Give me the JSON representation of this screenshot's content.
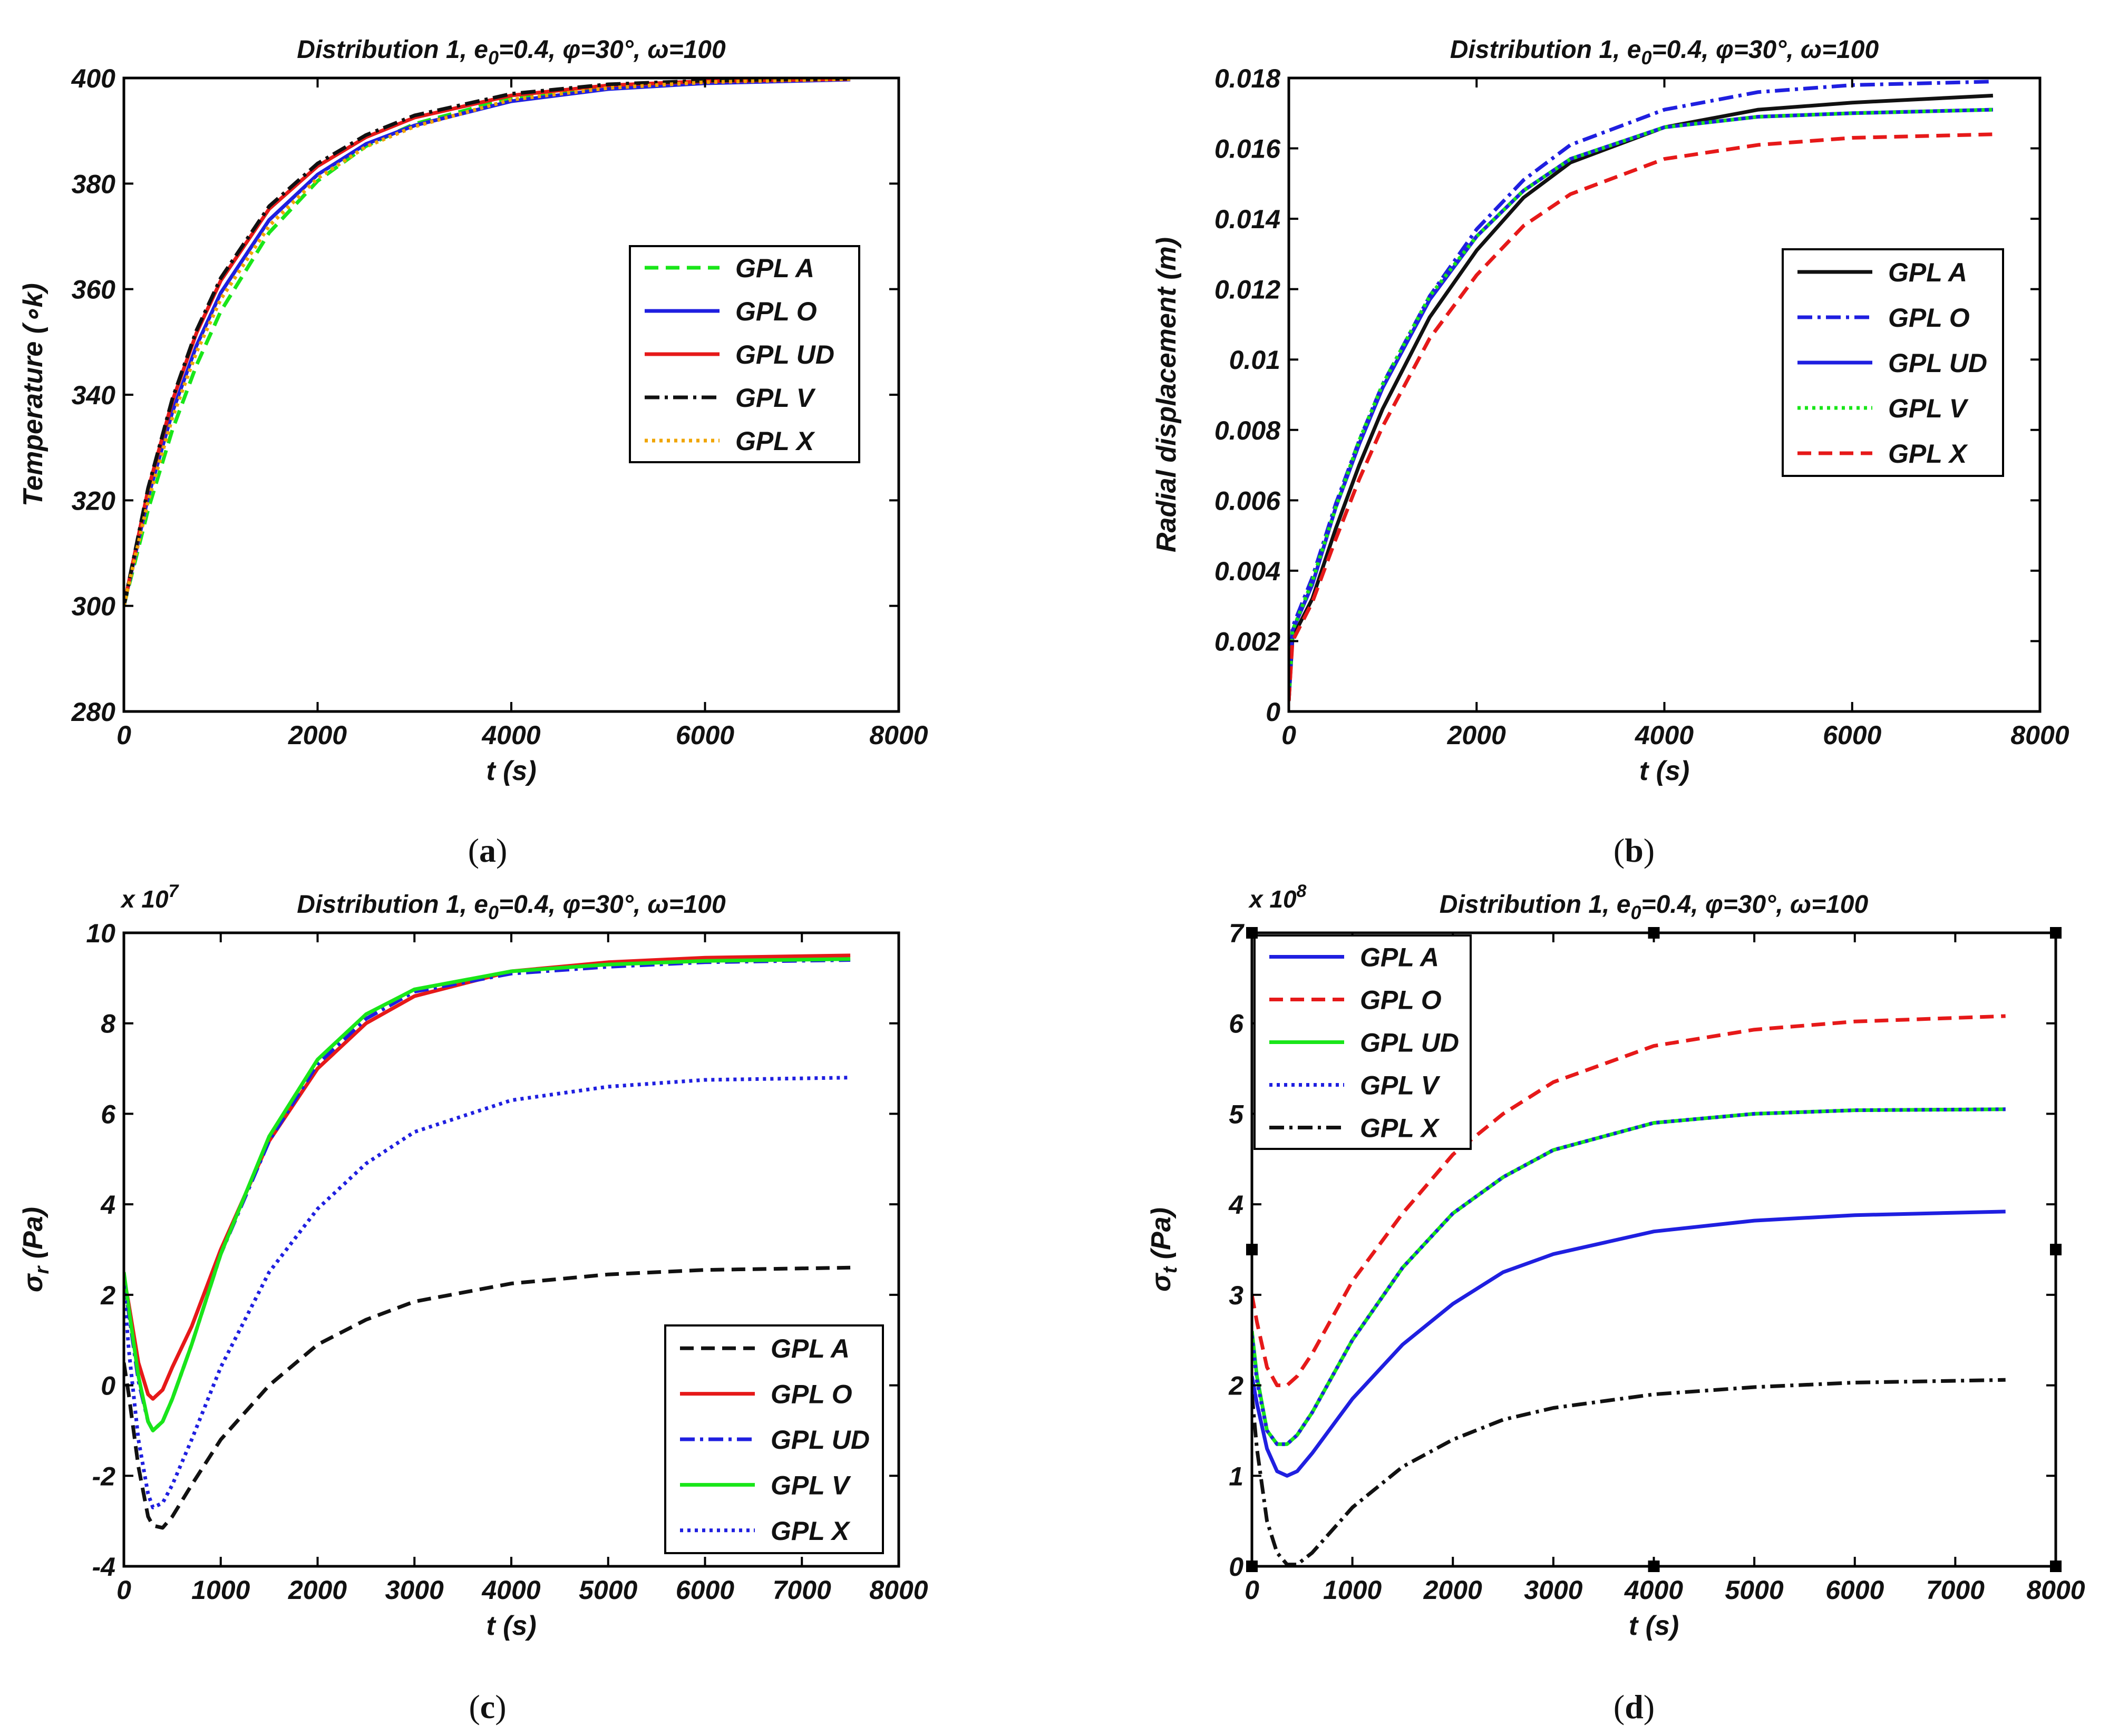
{
  "chart_data": [
    {
      "type": "line",
      "panel": "a",
      "caption": "(a)",
      "title": "Distribution 1, e0=0.4, φ=30°, ω=100",
      "xlabel": "t (s)",
      "ylabel": "Temperature (∘k)",
      "xlim": [
        0,
        8000
      ],
      "ylim": [
        280,
        400
      ],
      "xticks": [
        0,
        2000,
        4000,
        6000,
        8000
      ],
      "yticks": [
        280,
        300,
        320,
        340,
        360,
        380,
        400
      ],
      "xtick_labels": [
        "0",
        "2000",
        "4000",
        "6000",
        "8000"
      ],
      "ytick_labels": [
        "280",
        "300",
        "320",
        "340",
        "360",
        "380",
        "400"
      ],
      "y_multiplier": "",
      "legend": "center-right",
      "x": [
        0,
        250,
        500,
        750,
        1000,
        1500,
        2000,
        2500,
        3000,
        4000,
        5000,
        6000,
        7500
      ],
      "series": [
        {
          "name": "GPL A",
          "color": "#19e619",
          "dash": "dashed",
          "values": [
            300,
            318.2,
            333.3,
            345.6,
            355.8,
            370.7,
            380.5,
            387.1,
            391.3,
            396.2,
            398.4,
            399.3,
            399.8
          ]
        },
        {
          "name": "GPL O",
          "color": "#1f1fe0",
          "dash": "solid",
          "values": [
            300,
            320.6,
            336.7,
            349.3,
            359.3,
            373.1,
            381.7,
            387.5,
            391.0,
            395.6,
            397.9,
            399.0,
            399.7
          ]
        },
        {
          "name": "GPL UD",
          "color": "#e61919",
          "dash": "solid",
          "values": [
            300,
            322.0,
            338.8,
            351.7,
            361.6,
            375.2,
            383.3,
            388.8,
            392.5,
            396.7,
            398.6,
            399.4,
            399.8
          ]
        },
        {
          "name": "GPL V",
          "color": "#111111",
          "dash": "dashdot",
          "values": [
            300,
            322.3,
            339.2,
            352.2,
            362.1,
            375.7,
            383.8,
            389.2,
            392.9,
            397.0,
            398.8,
            399.5,
            399.9
          ]
        },
        {
          "name": "GPL X",
          "color": "#f0a500",
          "dash": "dotted",
          "values": [
            300,
            319.8,
            335.6,
            348.1,
            358.1,
            372.0,
            381.0,
            387.0,
            390.8,
            395.9,
            398.1,
            399.2,
            399.8
          ]
        }
      ]
    },
    {
      "type": "line",
      "panel": "b",
      "caption": "(b)",
      "title": "Distribution 1, e0=0.4, φ=30°, ω=100",
      "xlabel": "t (s)",
      "ylabel": "Radial displacement (m)",
      "xlim": [
        0,
        8000
      ],
      "ylim": [
        0,
        0.018
      ],
      "xticks": [
        0,
        2000,
        4000,
        6000,
        8000
      ],
      "yticks": [
        0,
        0.002,
        0.004,
        0.006,
        0.008,
        0.01,
        0.012,
        0.014,
        0.016,
        0.018
      ],
      "xtick_labels": [
        "0",
        "2000",
        "4000",
        "6000",
        "8000"
      ],
      "ytick_labels": [
        "0",
        "0.002",
        "0.004",
        "0.006",
        "0.008",
        "0.01",
        "0.012",
        "0.014",
        "0.016",
        "0.018"
      ],
      "y_multiplier": "",
      "legend": "center-right",
      "x": [
        0,
        40,
        250,
        500,
        750,
        1000,
        1500,
        2000,
        2500,
        3000,
        4000,
        5000,
        6000,
        7500
      ],
      "series": [
        {
          "name": "GPL A",
          "color": "#111111",
          "dash": "solid",
          "values": [
            0.0003,
            0.0021,
            0.0032,
            0.0052,
            0.007,
            0.0086,
            0.0112,
            0.0131,
            0.0146,
            0.0156,
            0.0166,
            0.0171,
            0.0173,
            0.0175
          ]
        },
        {
          "name": "GPL O",
          "color": "#1f1fe0",
          "dash": "dashdot",
          "values": [
            0.0003,
            0.0024,
            0.0038,
            0.0059,
            0.0077,
            0.0093,
            0.0118,
            0.0137,
            0.0151,
            0.0161,
            0.0171,
            0.0176,
            0.0178,
            0.0179
          ]
        },
        {
          "name": "GPL UD",
          "color": "#1f1fe0",
          "dash": "solid",
          "values": [
            0.0003,
            0.0023,
            0.0036,
            0.0058,
            0.0076,
            0.0092,
            0.0117,
            0.0135,
            0.0148,
            0.0157,
            0.0166,
            0.0169,
            0.017,
            0.0171
          ]
        },
        {
          "name": "GPL V",
          "color": "#19e619",
          "dash": "dotted",
          "values": [
            0.0003,
            0.0023,
            0.0037,
            0.0058,
            0.0077,
            0.0093,
            0.0118,
            0.0135,
            0.0148,
            0.0157,
            0.0166,
            0.0169,
            0.017,
            0.0171
          ]
        },
        {
          "name": "GPL X",
          "color": "#e61919",
          "dash": "dashed",
          "values": [
            0.0003,
            0.002,
            0.0031,
            0.0049,
            0.0066,
            0.0081,
            0.0106,
            0.0124,
            0.0138,
            0.0147,
            0.0157,
            0.0161,
            0.0163,
            0.0164
          ]
        }
      ]
    },
    {
      "type": "line",
      "panel": "c",
      "caption": "(c)",
      "title": "Distribution 1, e0=0.4, φ=30°, ω=100",
      "xlabel": "t (s)",
      "ylabel": "σr (Pa)",
      "xlim": [
        0,
        8000
      ],
      "ylim": [
        -4,
        10
      ],
      "xticks": [
        0,
        1000,
        2000,
        3000,
        4000,
        5000,
        6000,
        7000,
        8000
      ],
      "yticks": [
        -4,
        -2,
        0,
        2,
        4,
        6,
        8,
        10
      ],
      "xtick_labels": [
        "0",
        "1000",
        "2000",
        "3000",
        "4000",
        "5000",
        "6000",
        "7000",
        "8000"
      ],
      "ytick_labels": [
        "-4",
        "-2",
        "0",
        "2",
        "4",
        "6",
        "8",
        "10"
      ],
      "y_multiplier": "x 10^7",
      "legend": "bottom-right",
      "x": [
        0,
        50,
        150,
        250,
        300,
        400,
        500,
        700,
        1000,
        1500,
        2000,
        2500,
        3000,
        4000,
        5000,
        6000,
        7500
      ],
      "series": [
        {
          "name": "GPL A",
          "color": "#111111",
          "dash": "dashed",
          "values": [
            0.5,
            -0.2,
            -1.8,
            -2.9,
            -3.1,
            -3.15,
            -2.9,
            -2.2,
            -1.2,
            0.0,
            0.9,
            1.45,
            1.85,
            2.25,
            2.45,
            2.55,
            2.6
          ]
        },
        {
          "name": "GPL O",
          "color": "#e61919",
          "dash": "solid",
          "values": [
            2.4,
            1.8,
            0.5,
            -0.2,
            -0.3,
            -0.1,
            0.4,
            1.3,
            3.0,
            5.4,
            7.0,
            8.0,
            8.6,
            9.15,
            9.35,
            9.45,
            9.5
          ]
        },
        {
          "name": "GPL UD",
          "color": "#1f1fe0",
          "dash": "dashdot",
          "values": [
            2.4,
            1.6,
            0.1,
            -0.8,
            -1.0,
            -0.8,
            -0.3,
            0.9,
            2.9,
            5.4,
            7.1,
            8.1,
            8.7,
            9.1,
            9.25,
            9.35,
            9.4
          ]
        },
        {
          "name": "GPL V",
          "color": "#19e619",
          "dash": "solid",
          "values": [
            2.5,
            1.7,
            0.2,
            -0.8,
            -1.0,
            -0.8,
            -0.3,
            0.9,
            2.9,
            5.5,
            7.2,
            8.2,
            8.75,
            9.15,
            9.3,
            9.38,
            9.42
          ]
        },
        {
          "name": "GPL X",
          "color": "#1f1fe0",
          "dash": "dotted",
          "values": [
            2.2,
            0.8,
            -1.2,
            -2.4,
            -2.7,
            -2.6,
            -2.2,
            -1.2,
            0.4,
            2.5,
            3.9,
            4.9,
            5.6,
            6.3,
            6.6,
            6.75,
            6.8
          ]
        }
      ]
    },
    {
      "type": "line",
      "panel": "d",
      "caption": "(d)",
      "title": "Distribution 1, e0=0.4, φ=30°, ω=100",
      "xlabel": "t (s)",
      "ylabel": "σt (Pa)",
      "xlim": [
        0,
        8000
      ],
      "ylim": [
        0,
        7
      ],
      "xticks": [
        0,
        1000,
        2000,
        3000,
        4000,
        5000,
        6000,
        7000,
        8000
      ],
      "yticks": [
        0,
        1,
        2,
        3,
        4,
        5,
        6,
        7
      ],
      "xtick_labels": [
        "0",
        "1000",
        "2000",
        "3000",
        "4000",
        "5000",
        "6000",
        "7000",
        "8000"
      ],
      "ytick_labels": [
        "0",
        "1",
        "2",
        "3",
        "4",
        "5",
        "6",
        "7"
      ],
      "y_multiplier": "x 10^8",
      "legend": "top-left",
      "x": [
        0,
        50,
        150,
        250,
        350,
        450,
        600,
        800,
        1000,
        1500,
        2000,
        2500,
        3000,
        4000,
        5000,
        6000,
        7500
      ],
      "series": [
        {
          "name": "GPL A",
          "color": "#1f1fe0",
          "dash": "solid",
          "values": [
            2.1,
            1.8,
            1.3,
            1.05,
            1.0,
            1.05,
            1.25,
            1.55,
            1.85,
            2.45,
            2.9,
            3.25,
            3.45,
            3.7,
            3.82,
            3.88,
            3.92
          ]
        },
        {
          "name": "GPL O",
          "color": "#e61919",
          "dash": "dashed",
          "values": [
            3.0,
            2.7,
            2.2,
            2.0,
            2.0,
            2.1,
            2.35,
            2.75,
            3.15,
            3.9,
            4.55,
            5.0,
            5.35,
            5.75,
            5.93,
            6.02,
            6.08
          ]
        },
        {
          "name": "GPL UD",
          "color": "#19e619",
          "dash": "solid",
          "values": [
            2.6,
            2.1,
            1.5,
            1.35,
            1.35,
            1.45,
            1.7,
            2.1,
            2.5,
            3.3,
            3.9,
            4.3,
            4.6,
            4.9,
            5.0,
            5.04,
            5.05
          ]
        },
        {
          "name": "GPL V",
          "color": "#1f1fe0",
          "dash": "dotted",
          "values": [
            2.55,
            2.05,
            1.5,
            1.35,
            1.35,
            1.45,
            1.7,
            2.1,
            2.5,
            3.3,
            3.9,
            4.3,
            4.6,
            4.9,
            5.0,
            5.04,
            5.05
          ]
        },
        {
          "name": "GPL X",
          "color": "#111111",
          "dash": "dashdot",
          "values": [
            1.9,
            1.3,
            0.5,
            0.15,
            0.02,
            0.02,
            0.15,
            0.4,
            0.65,
            1.1,
            1.4,
            1.62,
            1.75,
            1.9,
            1.98,
            2.03,
            2.06
          ]
        }
      ]
    }
  ]
}
